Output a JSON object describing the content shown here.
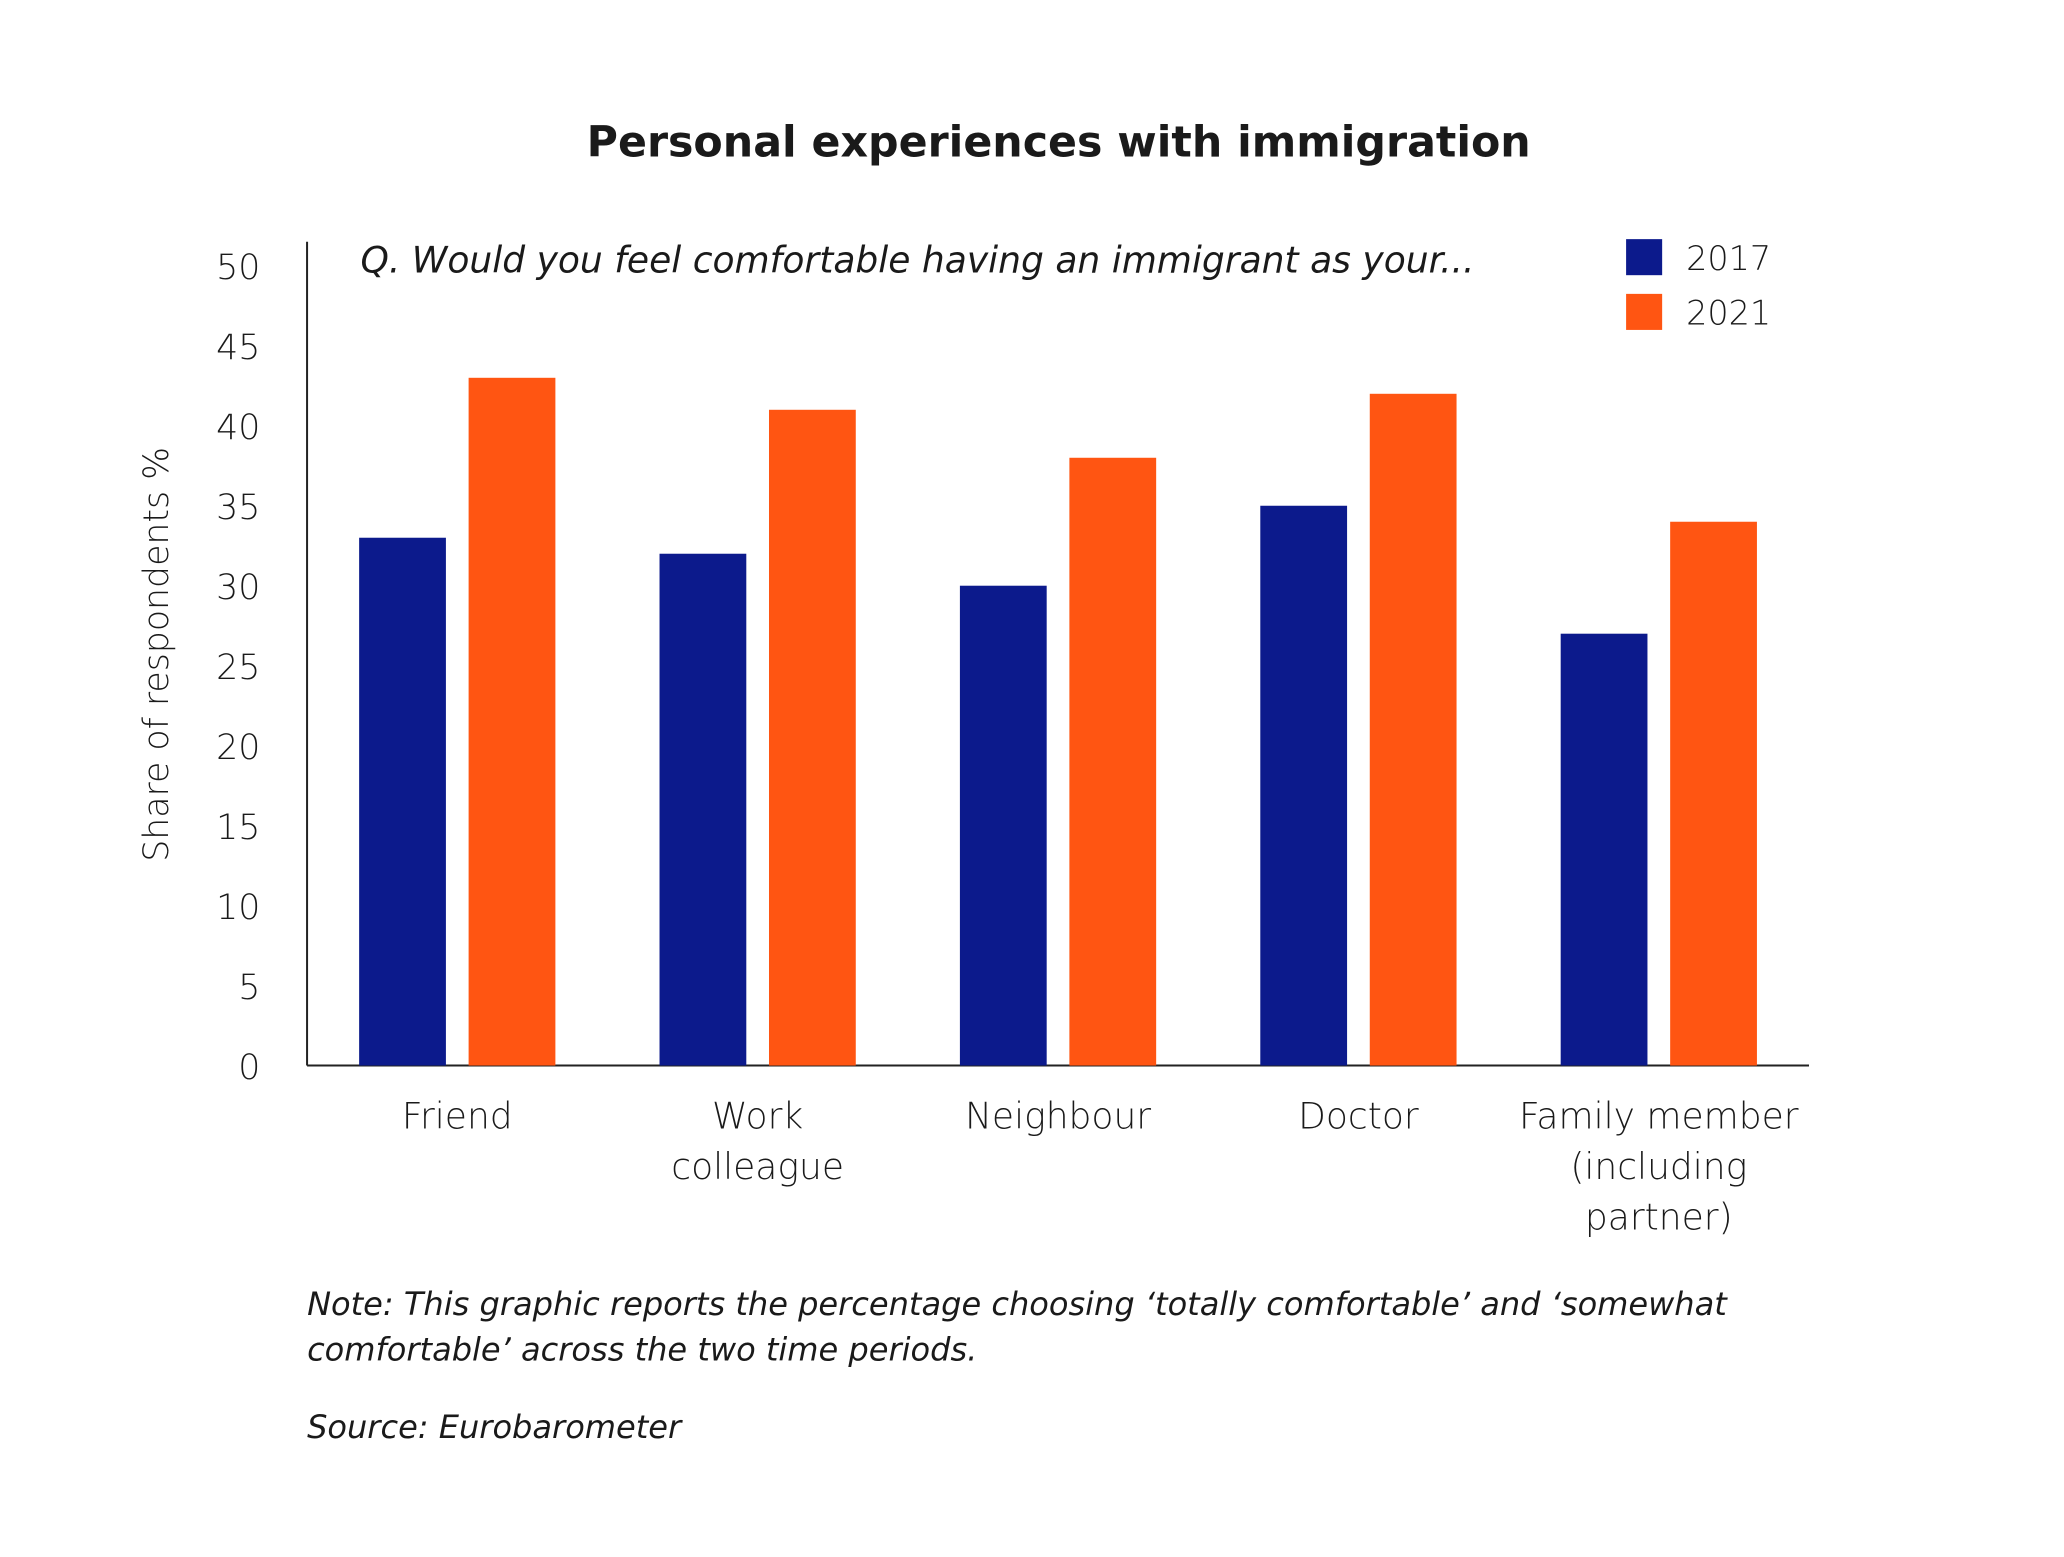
{
  "chart_data": {
    "type": "bar",
    "title": "Personal experiences with immigration",
    "subtitle": "Q. Would you feel comfortable having an immigrant as your...",
    "y_label": "Share of respondents %",
    "categories": [
      "Friend",
      "Work\ncolleague",
      "Neighbour",
      "Doctor",
      "Family member\n(including\npartner)"
    ],
    "series": [
      {
        "name": "2017",
        "color": "#0c1a8c",
        "values": [
          33,
          32,
          30,
          35,
          27
        ]
      },
      {
        "name": "2021",
        "color": "#ff5512",
        "values": [
          43,
          41,
          38,
          42,
          34
        ]
      }
    ],
    "ylim": [
      0,
      50
    ],
    "yticks": [
      0,
      5,
      10,
      15,
      20,
      25,
      30,
      35,
      40,
      45,
      50
    ],
    "grid": false,
    "legend": "top-right",
    "note": "Note: This graphic reports the percentage choosing ‘totally comfortable’ and ‘somewhat\ncomfortable’ across the two time periods.",
    "source": "Source: Eurobarometer"
  }
}
